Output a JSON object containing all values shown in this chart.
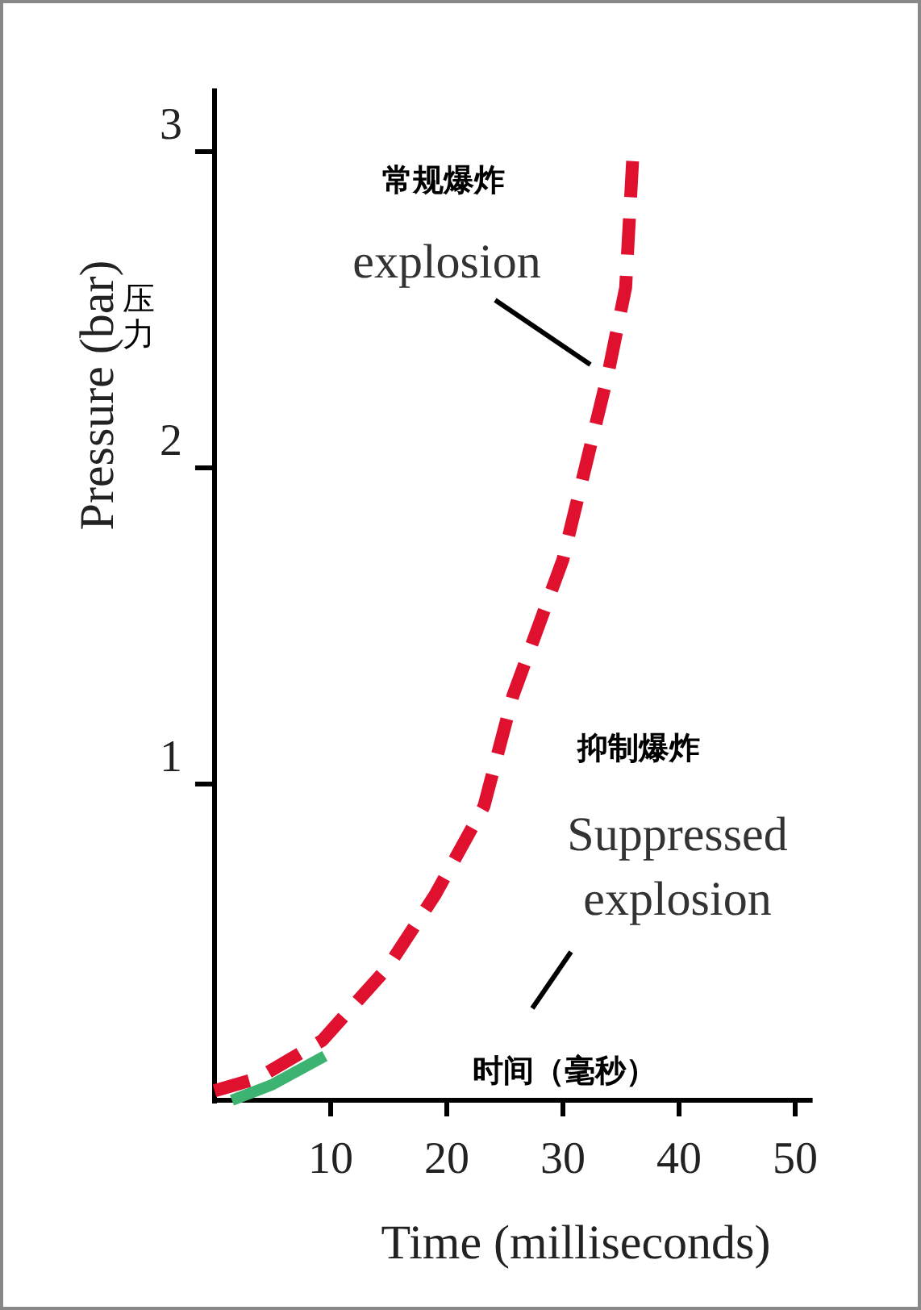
{
  "chart_data": {
    "type": "line",
    "xlabel": "Time (milliseconds)",
    "ylabel": "Pressure (bar)",
    "annotations": [
      "常规爆炸",
      "explosion",
      "抑制爆炸",
      "Suppressed explosion",
      "时间（毫秒）",
      "压力"
    ],
    "xlim": [
      0,
      51.5
    ],
    "ylim": [
      0,
      3.2
    ],
    "xticks": [
      10,
      20,
      30,
      40,
      50
    ],
    "yticks": [
      1,
      2,
      3
    ],
    "grid": false,
    "series": [
      {
        "color": "#e0102f",
        "line_style": "dashed",
        "x": [
          0,
          3.75,
          9.3,
          14.9,
          19,
          23.2,
          25.7,
          30,
          33.9,
          35.4,
          36
        ],
        "values": [
          0.03,
          0.07,
          0.19,
          0.42,
          0.65,
          0.93,
          1.28,
          1.71,
          2.3,
          2.57,
          2.97
        ]
      },
      {
        "color": "#3cb371",
        "line_style": "solid",
        "x": [
          1.5,
          5,
          9.5
        ],
        "values": [
          0,
          0.05,
          0.14
        ]
      }
    ]
  }
}
